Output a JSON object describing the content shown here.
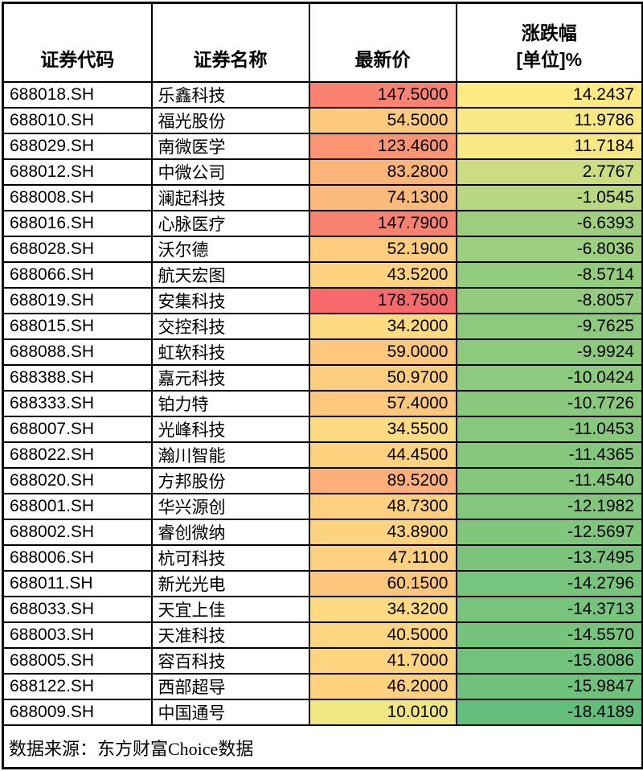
{
  "table": {
    "columns": [
      {
        "label": "证券代码"
      },
      {
        "label": "证券名称"
      },
      {
        "label": "最新价"
      },
      {
        "label": "涨跌幅",
        "label_line2": "[单位]%"
      }
    ],
    "rows": [
      {
        "code": "688018.SH",
        "name": "乐鑫科技",
        "price": "147.5000",
        "change": "14.2437",
        "price_color": "#F98270",
        "change_color": "#FFEA84"
      },
      {
        "code": "688010.SH",
        "name": "福光股份",
        "price": "54.5000",
        "change": "11.9786",
        "price_color": "#FDCA7E",
        "change_color": "#F9E984"
      },
      {
        "code": "688029.SH",
        "name": "南微医学",
        "price": "123.4600",
        "change": "11.7184",
        "price_color": "#FA9473",
        "change_color": "#F8E984"
      },
      {
        "code": "688012.SH",
        "name": "中微公司",
        "price": "83.2800",
        "change": "2.7767",
        "price_color": "#FCB479",
        "change_color": "#CCDC81"
      },
      {
        "code": "688008.SH",
        "name": "澜起科技",
        "price": "74.1300",
        "change": "-1.0545",
        "price_color": "#FCBB7B",
        "change_color": "#B9D780"
      },
      {
        "code": "688016.SH",
        "name": "心脉医疗",
        "price": "147.7900",
        "change": "-6.6393",
        "price_color": "#F98170",
        "change_color": "#9DCF7E"
      },
      {
        "code": "688028.SH",
        "name": "沃尔德",
        "price": "52.1900",
        "change": "-6.8036",
        "price_color": "#FDCC7E",
        "change_color": "#9CCF7E"
      },
      {
        "code": "688066.SH",
        "name": "航天宏图",
        "price": "43.5200",
        "change": "-8.5714",
        "price_color": "#FED37F",
        "change_color": "#94CC7E"
      },
      {
        "code": "688019.SH",
        "name": "安集科技",
        "price": "178.7500",
        "change": "-8.8057",
        "price_color": "#F8696B",
        "change_color": "#93CC7E"
      },
      {
        "code": "688015.SH",
        "name": "交控科技",
        "price": "34.2000",
        "change": "-9.7625",
        "price_color": "#FEDA81",
        "change_color": "#8ECA7D"
      },
      {
        "code": "688088.SH",
        "name": "虹软科技",
        "price": "59.0000",
        "change": "-9.9924",
        "price_color": "#FDC77D",
        "change_color": "#8DCA7D"
      },
      {
        "code": "688388.SH",
        "name": "嘉元科技",
        "price": "50.9700",
        "change": "-10.0424",
        "price_color": "#FDCD7E",
        "change_color": "#8CCA7D"
      },
      {
        "code": "688333.SH",
        "name": "铂力特",
        "price": "57.4000",
        "change": "-10.7726",
        "price_color": "#FDC87D",
        "change_color": "#89C97D"
      },
      {
        "code": "688007.SH",
        "name": "光峰科技",
        "price": "34.5500",
        "change": "-11.0453",
        "price_color": "#FEDA81",
        "change_color": "#87C87D"
      },
      {
        "code": "688022.SH",
        "name": "瀚川智能",
        "price": "44.4500",
        "change": "-11.4365",
        "price_color": "#FED27F",
        "change_color": "#85C87D"
      },
      {
        "code": "688020.SH",
        "name": "方邦股份",
        "price": "89.5200",
        "change": "-11.4540",
        "price_color": "#FCAF78",
        "change_color": "#85C87D"
      },
      {
        "code": "688001.SH",
        "name": "华兴源创",
        "price": "48.7300",
        "change": "-12.1982",
        "price_color": "#FDCF7F",
        "change_color": "#82C77D"
      },
      {
        "code": "688002.SH",
        "name": "睿创微纳",
        "price": "43.8900",
        "change": "-12.5697",
        "price_color": "#FED37F",
        "change_color": "#80C67D"
      },
      {
        "code": "688006.SH",
        "name": "杭可科技",
        "price": "47.1100",
        "change": "-13.7495",
        "price_color": "#FED07F",
        "change_color": "#7AC47C"
      },
      {
        "code": "688011.SH",
        "name": "新光光电",
        "price": "60.1500",
        "change": "-14.2796",
        "price_color": "#FDC67D",
        "change_color": "#77C47C"
      },
      {
        "code": "688033.SH",
        "name": "天宜上佳",
        "price": "34.3200",
        "change": "-14.3713",
        "price_color": "#FEDA81",
        "change_color": "#77C47C"
      },
      {
        "code": "688003.SH",
        "name": "天准科技",
        "price": "40.5000",
        "change": "-14.5570",
        "price_color": "#FED580",
        "change_color": "#76C37C"
      },
      {
        "code": "688005.SH",
        "name": "容百科技",
        "price": "41.7000",
        "change": "-15.8086",
        "price_color": "#FED480",
        "change_color": "#70C27C"
      },
      {
        "code": "688122.SH",
        "name": "西部超导",
        "price": "46.2000",
        "change": "-15.9847",
        "price_color": "#FED17F",
        "change_color": "#6FC27C"
      },
      {
        "code": "688009.SH",
        "name": "中国通号",
        "price": "10.0100",
        "change": "-18.4189",
        "price_color": "#F0E783",
        "change_color": "#63BE7B"
      }
    ],
    "footer": "数据来源：东方财富Choice数据"
  },
  "color_scale": {
    "high": "#F8696B",
    "mid": "#FFEB84",
    "low": "#63BE7B",
    "border": "#000000"
  },
  "chart_data": {
    "type": "table",
    "title": "",
    "columns": [
      "证券代码",
      "证券名称",
      "最新价",
      "涨跌幅[单位]%"
    ],
    "rows": [
      [
        "688018.SH",
        "乐鑫科技",
        147.5,
        14.2437
      ],
      [
        "688010.SH",
        "福光股份",
        54.5,
        11.9786
      ],
      [
        "688029.SH",
        "南微医学",
        123.46,
        11.7184
      ],
      [
        "688012.SH",
        "中微公司",
        83.28,
        2.7767
      ],
      [
        "688008.SH",
        "澜起科技",
        74.13,
        -1.0545
      ],
      [
        "688016.SH",
        "心脉医疗",
        147.79,
        -6.6393
      ],
      [
        "688028.SH",
        "沃尔德",
        52.19,
        -6.8036
      ],
      [
        "688066.SH",
        "航天宏图",
        43.52,
        -8.5714
      ],
      [
        "688019.SH",
        "安集科技",
        178.75,
        -8.8057
      ],
      [
        "688015.SH",
        "交控科技",
        34.2,
        -9.7625
      ],
      [
        "688088.SH",
        "虹软科技",
        59.0,
        -9.9924
      ],
      [
        "688388.SH",
        "嘉元科技",
        50.97,
        -10.0424
      ],
      [
        "688333.SH",
        "铂力特",
        57.4,
        -10.7726
      ],
      [
        "688007.SH",
        "光峰科技",
        34.55,
        -11.0453
      ],
      [
        "688022.SH",
        "瀚川智能",
        44.45,
        -11.4365
      ],
      [
        "688020.SH",
        "方邦股份",
        89.52,
        -11.454
      ],
      [
        "688001.SH",
        "华兴源创",
        48.73,
        -12.1982
      ],
      [
        "688002.SH",
        "睿创微纳",
        43.89,
        -12.5697
      ],
      [
        "688006.SH",
        "杭可科技",
        47.11,
        -13.7495
      ],
      [
        "688011.SH",
        "新光光电",
        60.15,
        -14.2796
      ],
      [
        "688033.SH",
        "天宜上佳",
        34.32,
        -14.3713
      ],
      [
        "688003.SH",
        "天准科技",
        40.5,
        -14.557
      ],
      [
        "688005.SH",
        "容百科技",
        41.7,
        -15.8086
      ],
      [
        "688122.SH",
        "西部超导",
        46.2,
        -15.9847
      ],
      [
        "688009.SH",
        "中国通号",
        10.01,
        -18.4189
      ]
    ],
    "conditional_formatting": "3-color scale red(#F8696B) / yellow(#FFEB84) / green(#63BE7B) applied jointly across 最新价 and 涨跌幅 cells (max=178.75 red, min=-18.4189 green)",
    "source_note": "数据来源：东方财富Choice数据"
  }
}
